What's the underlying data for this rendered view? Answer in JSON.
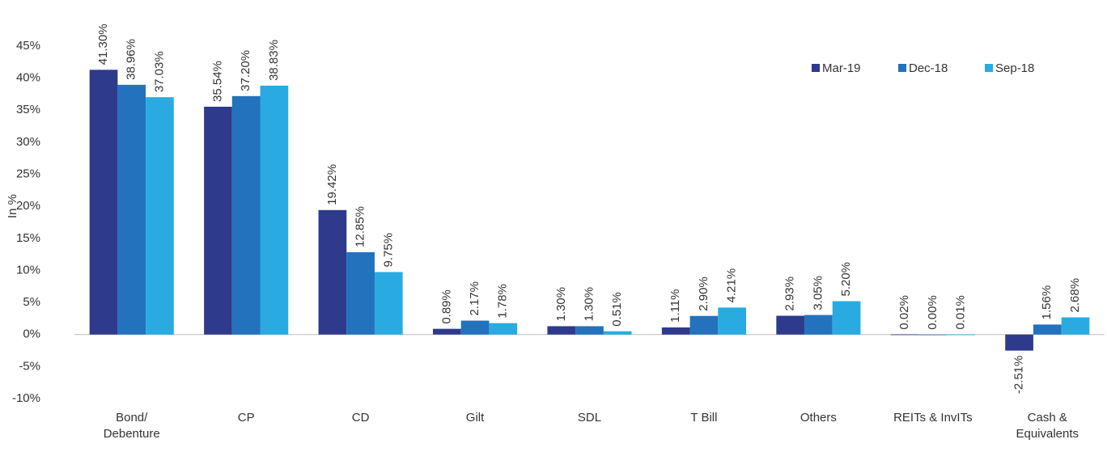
{
  "chart_data": {
    "type": "bar",
    "y_label": "In %",
    "categories": [
      "Bond/\nDebenture",
      "CP",
      "CD",
      "Gilt",
      "SDL",
      "T Bill",
      "Others",
      "REITs & InvITs",
      "Cash &\nEquivalents"
    ],
    "series": [
      {
        "name": "Mar-19",
        "color": "#2e3a8c",
        "values": [
          41.3,
          35.54,
          19.42,
          0.89,
          1.3,
          1.11,
          2.93,
          0.02,
          -2.51
        ],
        "value_labels": [
          "41.30%",
          "35.54%",
          "19.42%",
          "0.89%",
          "1.30%",
          "1.11%",
          "2.93%",
          "0.02%",
          "-2.51%"
        ]
      },
      {
        "name": "Dec-18",
        "color": "#2272be",
        "values": [
          38.96,
          37.2,
          12.85,
          2.17,
          1.3,
          2.9,
          3.05,
          0.0,
          1.56
        ],
        "value_labels": [
          "38.96%",
          "37.20%",
          "12.85%",
          "2.17%",
          "1.30%",
          "2.90%",
          "3.05%",
          "0.00%",
          "1.56%"
        ]
      },
      {
        "name": "Sep-18",
        "color": "#29abe2",
        "values": [
          37.03,
          38.83,
          9.75,
          1.78,
          0.51,
          4.21,
          5.2,
          0.01,
          2.68
        ],
        "value_labels": [
          "37.03%",
          "38.83%",
          "9.75%",
          "1.78%",
          "0.51%",
          "4.21%",
          "5.20%",
          "0.01%",
          "2.68%"
        ]
      }
    ],
    "ylim": [
      -10,
      45
    ],
    "yticks": [
      {
        "value": -10,
        "label": "-10%"
      },
      {
        "value": -5,
        "label": "-5%"
      },
      {
        "value": 0,
        "label": "0%"
      },
      {
        "value": 5,
        "label": "5%"
      },
      {
        "value": 10,
        "label": "10%"
      },
      {
        "value": 15,
        "label": "15%"
      },
      {
        "value": 20,
        "label": "20%"
      },
      {
        "value": 25,
        "label": "25%"
      },
      {
        "value": 30,
        "label": "30%"
      },
      {
        "value": 35,
        "label": "35%"
      },
      {
        "value": 40,
        "label": "40%"
      },
      {
        "value": 45,
        "label": "45%"
      }
    ],
    "legend": "top-right",
    "grid": false
  }
}
